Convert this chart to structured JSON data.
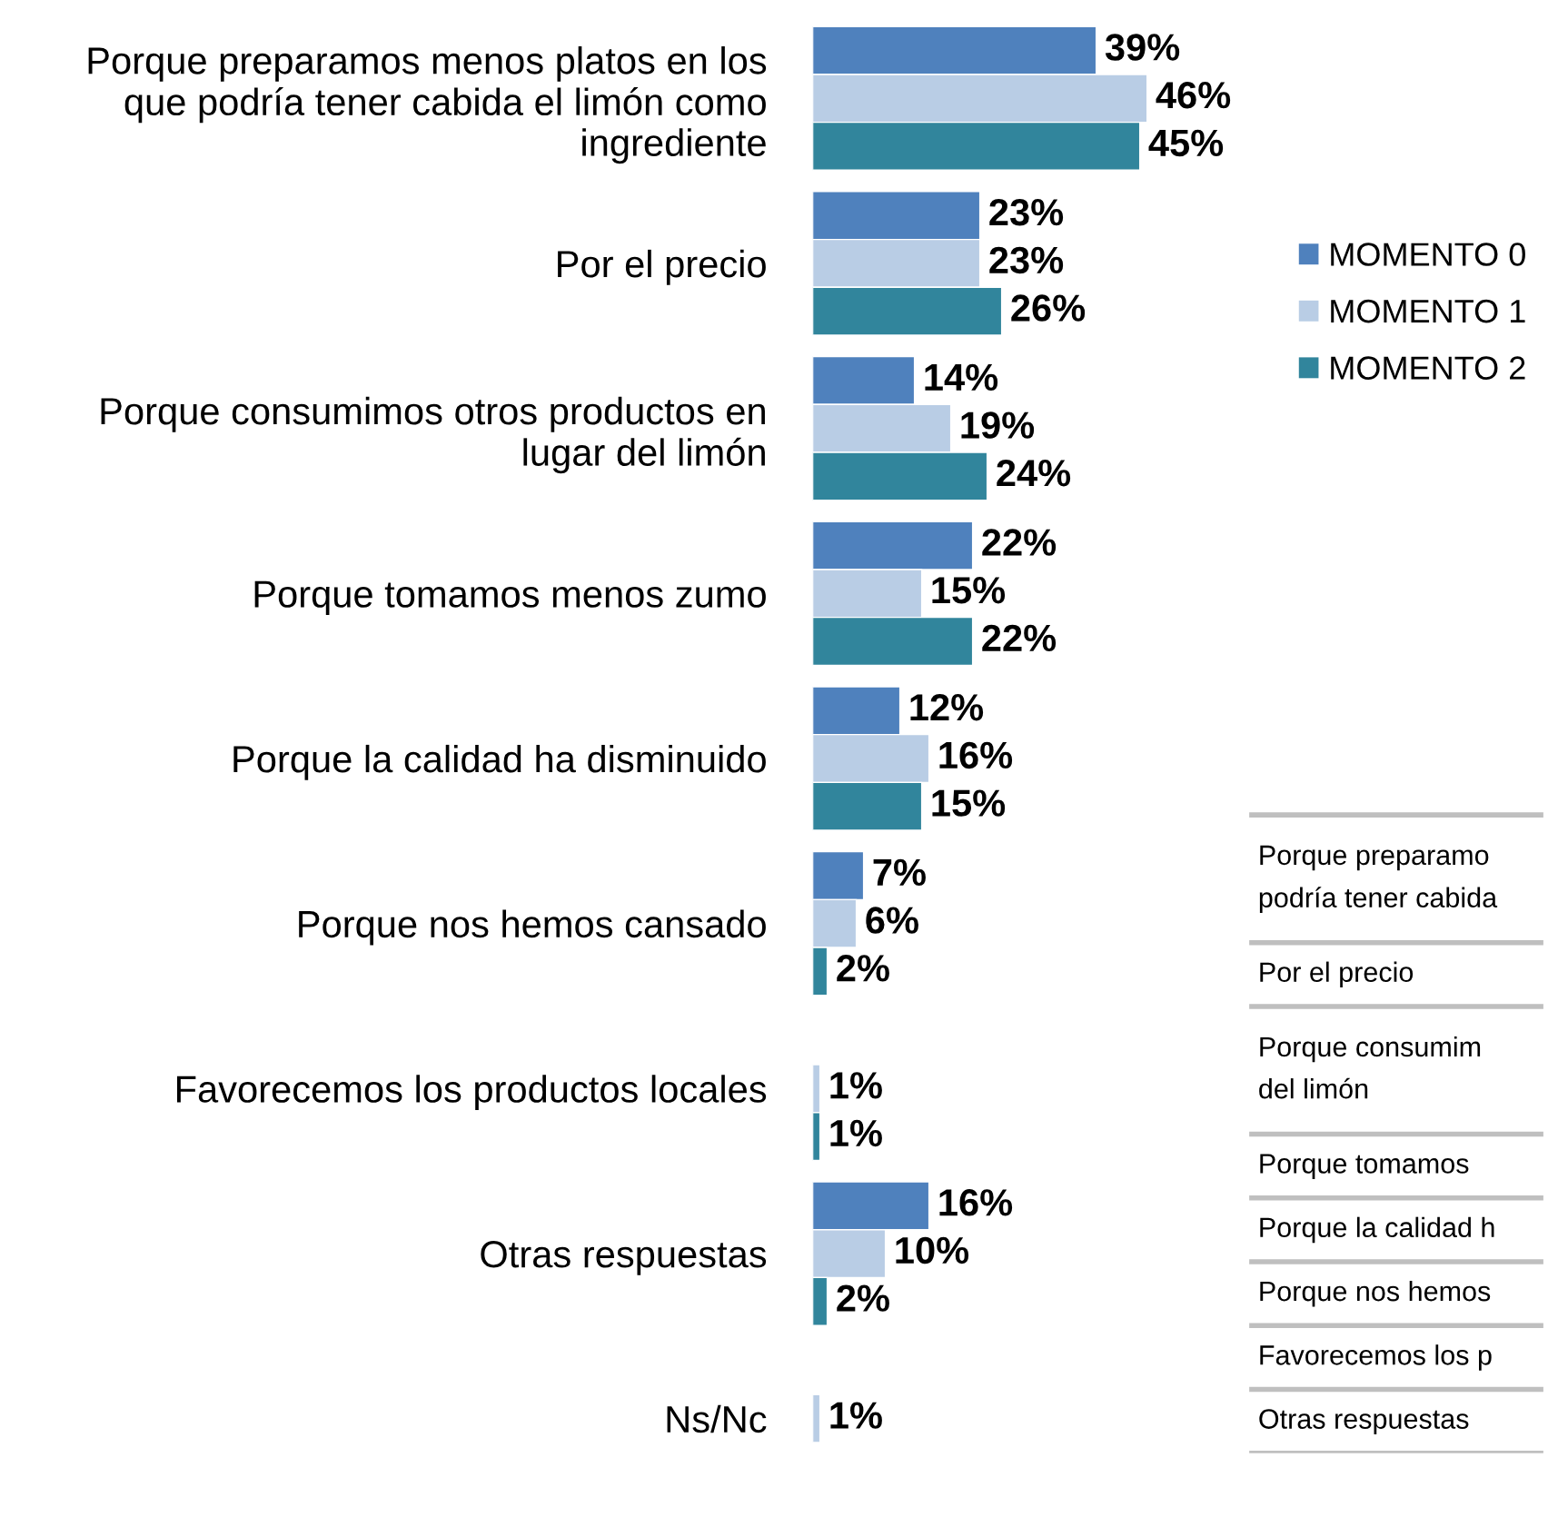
{
  "chart_data": [
    {
      "type": "bar",
      "orientation": "horizontal",
      "legend": "right",
      "categories": [
        "Porque preparamos menos platos en los que podría tener cabida el limón como ingrediente",
        "Por el precio",
        "Porque consumimos otros productos en lugar del limón",
        "Porque tomamos menos zumo",
        "Porque la calidad ha disminuido",
        "Porque nos hemos cansado",
        "Favorecemos los productos locales",
        "Otras respuestas",
        "Ns/Nc"
      ],
      "series": [
        {
          "name": "MOMENTO 0",
          "color": "#4f81bd",
          "values": [
            39,
            23,
            14,
            22,
            12,
            7,
            null,
            16,
            null
          ],
          "value_labels": [
            "39%",
            "23%",
            "14%",
            "22%",
            "12%",
            "7%",
            null,
            "16%",
            null
          ]
        },
        {
          "name": "MOMENTO 1",
          "color": "#b9cde5",
          "values": [
            46,
            23,
            19,
            15,
            16,
            6,
            1,
            10,
            1
          ],
          "value_labels": [
            "46%",
            "23%",
            "19%",
            "15%",
            "16%",
            "6%",
            "1%",
            "10%",
            "1%"
          ]
        },
        {
          "name": "MOMENTO 2",
          "color": "#31859c",
          "values": [
            45,
            26,
            24,
            22,
            15,
            2,
            1,
            2,
            null
          ],
          "value_labels": [
            "45%",
            "26%",
            "24%",
            "22%",
            "15%",
            "2%",
            "1%",
            "2%",
            null
          ]
        }
      ]
    },
    {
      "type": "other",
      "annotations": [
        "Porque preparamo\npodría tener cabida",
        "Por el precio",
        "Porque consumim\ndel limón",
        "Porque tomamos",
        "Porque la calidad h",
        "Porque nos hemos",
        "Favorecemos los p",
        "Otras respuestas"
      ]
    }
  ]
}
